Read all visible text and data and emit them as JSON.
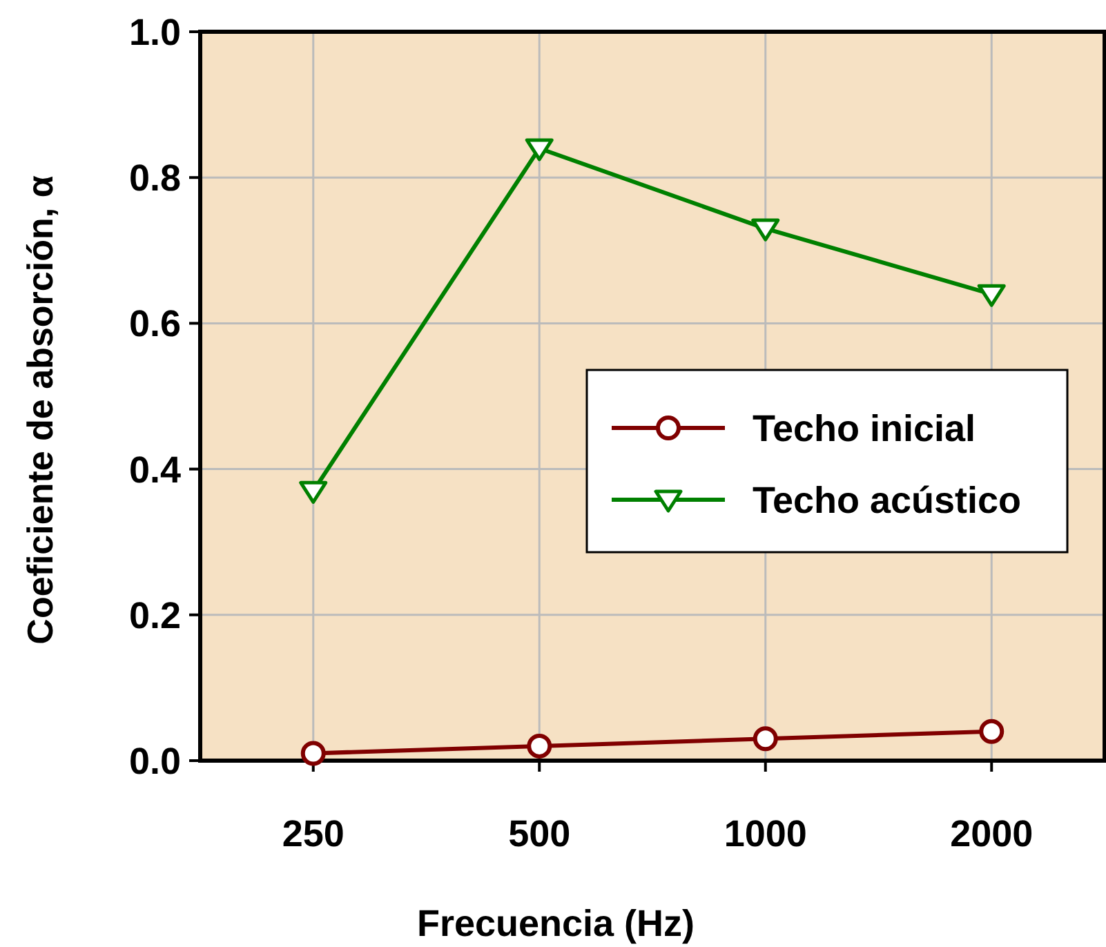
{
  "chart_data": {
    "type": "line",
    "xlabel": "Frecuencia (Hz)",
    "ylabel": "Coeficiente de absorción, α",
    "categories": [
      "250",
      "500",
      "1000",
      "2000"
    ],
    "series": [
      {
        "name": "Techo inicial",
        "color": "#800000",
        "values": [
          0.01,
          0.02,
          0.03,
          0.04
        ],
        "marker": "circle"
      },
      {
        "name": "Techo acústico",
        "color": "#008000",
        "values": [
          0.37,
          0.84,
          0.73,
          0.64
        ],
        "marker": "triangle"
      }
    ],
    "ylim": [
      0,
      1
    ],
    "yticks": [
      {
        "value": 0,
        "label": "0.0"
      },
      {
        "value": 0.2,
        "label": "0.2"
      },
      {
        "value": 0.4,
        "label": "0.4"
      },
      {
        "value": 0.6,
        "label": "0.6"
      },
      {
        "value": 0.8,
        "label": "0.8"
      },
      {
        "value": 1,
        "label": "1.0"
      }
    ],
    "grid": true,
    "legend": "right",
    "line_style": "solid"
  }
}
